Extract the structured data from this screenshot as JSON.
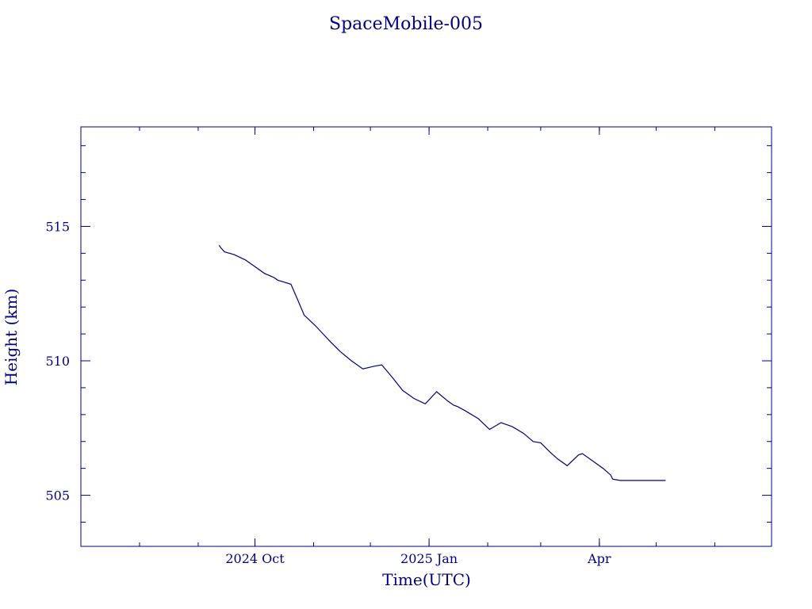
{
  "chart_data": {
    "type": "line",
    "title": "SpaceMobile-005",
    "xlabel": "Time(UTC)",
    "ylabel": "Height (km)",
    "x_ticks": [
      {
        "date": "2024-10-01",
        "label": "2024 Oct"
      },
      {
        "date": "2025-01-01",
        "label": "2025 Jan"
      },
      {
        "date": "2025-04-01",
        "label": "Apr"
      }
    ],
    "y_ticks": [
      505,
      510,
      515
    ],
    "xlim": [
      "2024-07-01",
      "2025-07-01"
    ],
    "ylim": [
      503.1,
      518.7
    ],
    "grid": false,
    "colors": {
      "line": "#000080",
      "axis": "#000080",
      "text": "#000080"
    },
    "series": [
      {
        "x": [
          "2024-09-12",
          "2024-09-13",
          "2024-09-15",
          "2024-09-20",
          "2024-09-26",
          "2024-10-01",
          "2024-10-06",
          "2024-10-11",
          "2024-10-13",
          "2024-10-20",
          "2024-10-24",
          "2024-10-27",
          "2024-11-02",
          "2024-11-06",
          "2024-11-10",
          "2024-11-15",
          "2024-11-21",
          "2024-11-27",
          "2024-12-03",
          "2024-12-07",
          "2024-12-10",
          "2024-12-13",
          "2024-12-18",
          "2024-12-24",
          "2024-12-30",
          "2025-01-05",
          "2025-01-11",
          "2025-01-14",
          "2025-01-16",
          "2025-01-20",
          "2025-01-27",
          "2025-02-02",
          "2025-02-08",
          "2025-02-14",
          "2025-02-20",
          "2025-02-25",
          "2025-03-01",
          "2025-03-06",
          "2025-03-10",
          "2025-03-15",
          "2025-03-21",
          "2025-03-23",
          "2025-03-28",
          "2025-04-03",
          "2025-04-07",
          "2025-04-08",
          "2025-04-12",
          "2025-04-18",
          "2025-04-24",
          "2025-04-30",
          "2025-05-04",
          "2025-05-06"
        ],
        "y": [
          514.3,
          514.2,
          514.05,
          513.95,
          513.75,
          513.5,
          513.25,
          513.1,
          513.0,
          512.85,
          512.2,
          511.7,
          511.3,
          511.0,
          510.7,
          510.35,
          510.0,
          509.7,
          509.8,
          509.85,
          509.6,
          509.35,
          508.9,
          508.6,
          508.4,
          508.85,
          508.5,
          508.35,
          508.3,
          508.15,
          507.85,
          507.45,
          507.7,
          507.55,
          507.3,
          507.0,
          506.95,
          506.6,
          506.35,
          506.1,
          506.5,
          506.55,
          506.3,
          506.0,
          505.75,
          505.6,
          505.55,
          505.55,
          505.55,
          505.55,
          505.55,
          505.55
        ]
      }
    ]
  }
}
